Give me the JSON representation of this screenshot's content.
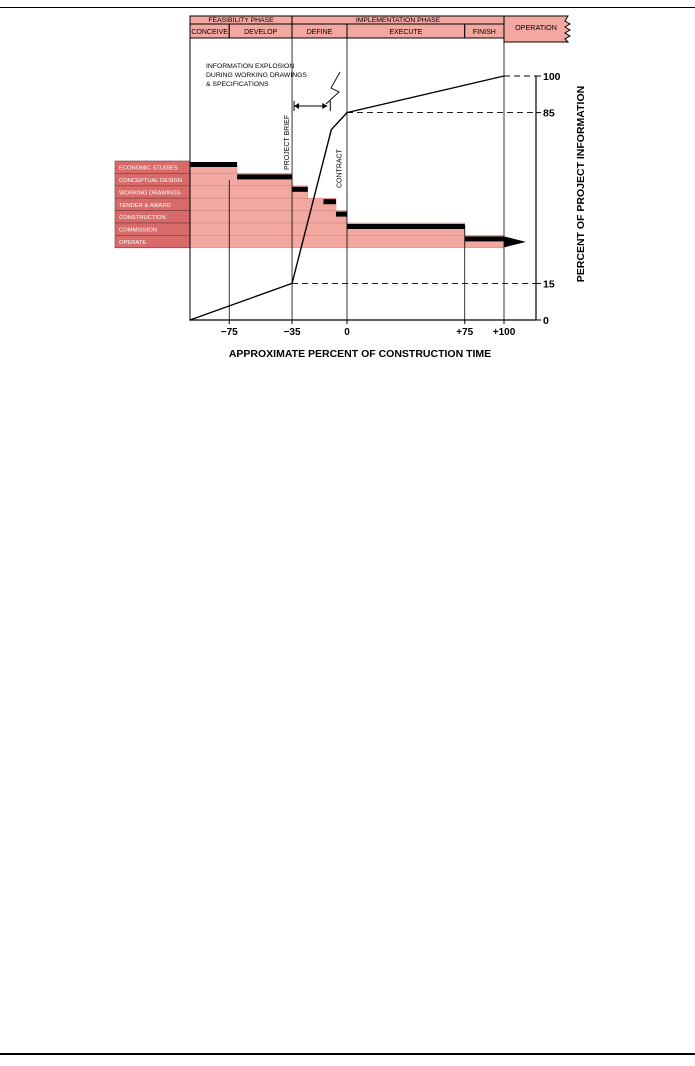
{
  "chart_data": {
    "type": "line",
    "xlabel": "APPROXIMATE PERCENT OF CONSTRUCTION TIME",
    "ylabel": "PERCENT OF PROJECT INFORMATION",
    "xlim": [
      -100,
      100
    ],
    "ylim": [
      0,
      100
    ],
    "x_ticks": [
      {
        "value": -75,
        "label": "−75"
      },
      {
        "value": -35,
        "label": "−35"
      },
      {
        "value": 0,
        "label": "0"
      },
      {
        "value": 75,
        "label": "+75"
      },
      {
        "value": 100,
        "label": "+100"
      }
    ],
    "y_ticks": [
      {
        "value": 100,
        "label": "100"
      },
      {
        "value": 85,
        "label": "85"
      },
      {
        "value": 15,
        "label": "15"
      },
      {
        "value": 0,
        "label": "0"
      }
    ],
    "series": [
      {
        "x": [
          -100,
          -35,
          -10,
          0,
          100
        ],
        "y": [
          0,
          15,
          78,
          85,
          100
        ]
      }
    ],
    "reference_lines": [
      {
        "x": -35,
        "y": 15
      },
      {
        "x": 0,
        "y": 85
      },
      {
        "x": 100,
        "y": 100
      }
    ],
    "vertical_markers": [
      {
        "x": -75
      },
      {
        "x": -35
      },
      {
        "x": 0
      },
      {
        "x": 75
      },
      {
        "x": 100
      }
    ],
    "phases": [
      {
        "label": "FEASIBILITY PHASE",
        "x0": -100,
        "x1": -35
      },
      {
        "label": "IMPLEMENTATION PHASE",
        "x0": -35,
        "x1": 100
      },
      {
        "label": "OPERATION",
        "x0": 100,
        "x1": 140
      }
    ],
    "subphases": [
      {
        "label": "CONCEIVE",
        "x0": -100,
        "x1": -75
      },
      {
        "label": "DEVELOP",
        "x0": -75,
        "x1": -35
      },
      {
        "label": "DEFINE",
        "x0": -35,
        "x1": 0
      },
      {
        "label": "EXECUTE",
        "x0": 0,
        "x1": 75
      },
      {
        "label": "FINISH",
        "x0": 75,
        "x1": 100
      }
    ],
    "activities": [
      {
        "label": "ECONOMIC STUDIES",
        "start": -100,
        "end": -70
      },
      {
        "label": "CONCEPTUAL DESIGN",
        "start": -70,
        "end": -35
      },
      {
        "label": "WORKING DRAWINGS",
        "start": -35,
        "end": -25
      },
      {
        "label": "TENDER & AWARD",
        "start": -15,
        "end": -7
      },
      {
        "label": "CONSTRUCTION",
        "start": -7,
        "end": 0
      },
      {
        "label": "COMMISSION",
        "start": 0,
        "end": 75
      },
      {
        "label": "OPERATE",
        "start": 75,
        "end": 100
      }
    ],
    "annotations": {
      "project_brief": "PROJECT BRIEF",
      "contract": "CONTRACT",
      "explosion_lines": [
        "INFORMATION EXPLOSION",
        "DURING WORKING DRAWINGS",
        "& SPECIFICATIONS"
      ]
    },
    "colors": {
      "fill": "#f2a7a0",
      "fill_dark": "#d96a6a",
      "line": "#000000"
    }
  }
}
